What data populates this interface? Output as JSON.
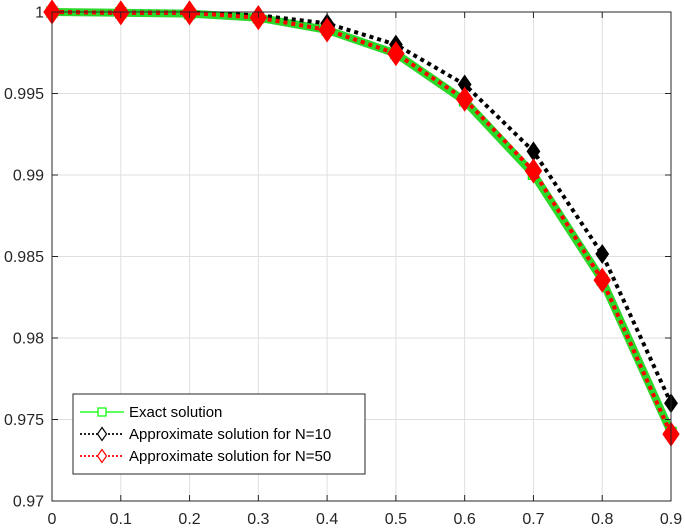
{
  "chart_data": {
    "type": "line",
    "title": "",
    "xlabel": "",
    "ylabel": "",
    "xlim": [
      0,
      0.9
    ],
    "ylim": [
      0.97,
      1.0
    ],
    "grid": true,
    "legend_position": "bottom-left",
    "xticks": [
      0,
      0.1,
      0.2,
      0.3,
      0.4,
      0.5,
      0.6,
      0.7,
      0.8,
      0.9
    ],
    "xtick_labels": [
      "0",
      "0.1",
      "0.2",
      "0.3",
      "0.4",
      "0.5",
      "0.6",
      "0.7",
      "0.8",
      "0.9"
    ],
    "yticks": [
      0.97,
      0.975,
      0.98,
      0.985,
      0.99,
      0.995,
      1.0
    ],
    "ytick_labels": [
      "0.97",
      "0.975",
      "0.98",
      "0.985",
      "0.99",
      "0.995",
      "1"
    ],
    "x": [
      0,
      0.1,
      0.2,
      0.3,
      0.4,
      0.5,
      0.6,
      0.7,
      0.8,
      0.9
    ],
    "series": [
      {
        "name": "Exact solution",
        "color": "#00ff00",
        "line_style": "solid",
        "marker": "square",
        "values": [
          1.0,
          0.99995,
          0.9999,
          0.99965,
          0.9989,
          0.99745,
          0.99455,
          0.99005,
          0.98355,
          0.9742
        ]
      },
      {
        "name": "Approximate solution for N=10",
        "color": "#000000",
        "line_style": "dotted",
        "marker": "diamond",
        "values": [
          1.0,
          0.99995,
          0.99995,
          0.9998,
          0.9993,
          0.998,
          0.99555,
          0.99145,
          0.98515,
          0.976
        ]
      },
      {
        "name": "Approximate solution for N=50",
        "color": "#ff0000",
        "line_style": "dotted",
        "marker": "diamond",
        "values": [
          1.0,
          0.99995,
          0.99995,
          0.99965,
          0.9989,
          0.99745,
          0.99465,
          0.99025,
          0.98355,
          0.9741
        ]
      }
    ]
  }
}
